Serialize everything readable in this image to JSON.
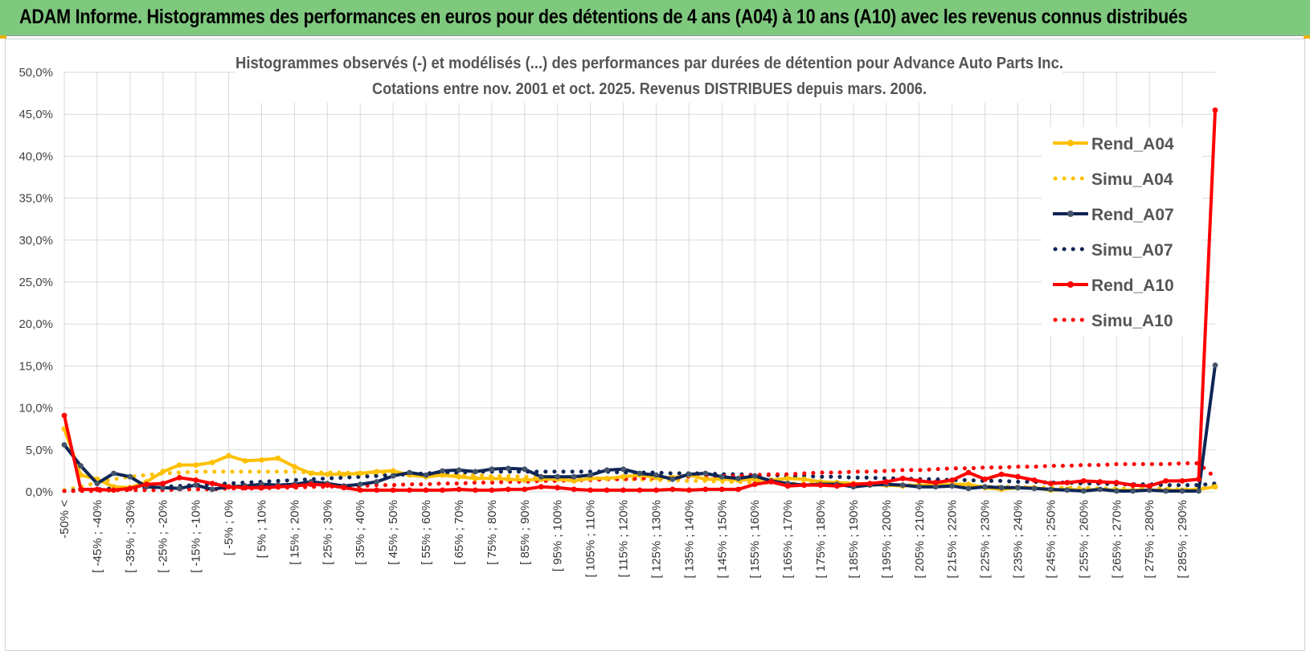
{
  "header": {
    "title": "ADAM Informe. Histogrammes des performances en euros pour des détentions de 4 ans (A04) à 10 ans (A10) avec les revenus connus distribués"
  },
  "chart_data": {
    "type": "line",
    "title": "Histogrammes observés (-) et modélisés (...) des performances par durées de détention pour Advance Auto Parts Inc.",
    "subtitle": "Cotations entre nov. 2001 et oct. 2025. Revenus DISTRIBUES depuis mars. 2006.",
    "xlabel": "",
    "ylabel": "",
    "ylim": [
      0,
      50
    ],
    "yticks": [
      "0,0%",
      "5,0%",
      "10,0%",
      "15,0%",
      "20,0%",
      "25,0%",
      "30,0%",
      "35,0%",
      "40,0%",
      "45,0%",
      "50,0%"
    ],
    "grid": true,
    "legend_position": "right",
    "tick_labels": [
      "-50% <",
      "[ -45% ; -40%",
      "[ -35% ; -30%",
      "[ -25% ; -20%",
      "[ -15% ; -10%",
      "[ -5% ; 0%",
      "[ 5% ; 10%",
      "[ 15% ; 20%",
      "[ 25% ; 30%",
      "[ 35% ; 40%",
      "[ 45% ; 50%",
      "[ 55% ; 60%",
      "[ 65% ; 70%",
      "[ 75% ; 80%",
      "[ 85% ; 90%",
      "[ 95% ; 100%",
      "[ 105% ; 110%",
      "[ 115% ; 120%",
      "[ 125% ; 130%",
      "[ 135% ; 140%",
      "[ 145% ; 150%",
      "[ 155% ; 160%",
      "[ 165% ; 170%",
      "[ 175% ; 180%",
      "[ 185% ; 190%",
      "[ 195% ; 200%",
      "[ 205% ; 210%",
      "[ 215% ; 220%",
      "[ 225% ; 230%",
      "[ 235% ; 240%",
      "[ 245% ; 250%",
      "[ 255% ; 260%",
      "[ 265% ; 270%",
      "[ 275% ; 280%",
      "[ 285% ; 290%"
    ],
    "series": [
      {
        "name": "Rend_A04",
        "color": "#fec000",
        "style": "solid",
        "values": [
          7.5,
          2.0,
          1.5,
          0.6,
          0.5,
          1.2,
          2.4,
          3.2,
          3.2,
          3.5,
          4.3,
          3.7,
          3.8,
          4.0,
          3.0,
          2.2,
          2.1,
          2.1,
          2.2,
          2.4,
          2.5,
          2.0,
          1.8,
          2.0,
          1.8,
          1.6,
          1.6,
          1.5,
          1.4,
          1.5,
          1.5,
          1.3,
          1.6,
          1.6,
          1.8,
          2.0,
          1.7,
          1.7,
          2.0,
          1.5,
          1.5,
          1.4,
          1.5,
          1.4,
          1.6,
          1.5,
          1.2,
          1.1,
          1.0,
          0.9,
          0.8,
          0.7,
          0.8,
          0.8,
          0.9,
          0.9,
          0.5,
          0.3,
          0.5,
          0.5,
          0.2,
          0.3,
          0.2,
          0.3,
          0.2,
          0.2,
          0.2,
          0.2,
          0.2,
          0.3,
          0.6
        ]
      },
      {
        "name": "Simu_A04",
        "color": "#fec000",
        "style": "dotted",
        "values": [
          0.2,
          0.6,
          1.1,
          1.5,
          1.8,
          2.0,
          2.2,
          2.3,
          2.4,
          2.4,
          2.4,
          2.4,
          2.4,
          2.4,
          2.4,
          2.3,
          2.3,
          2.3,
          2.2,
          2.2,
          2.2,
          2.1,
          2.1,
          2.0,
          2.0,
          2.0,
          1.9,
          1.9,
          1.8,
          1.8,
          1.7,
          1.7,
          1.6,
          1.6,
          1.5,
          1.5,
          1.4,
          1.4,
          1.3,
          1.3,
          1.2,
          1.2,
          1.1,
          1.1,
          1.0,
          1.0,
          1.0,
          0.9,
          0.9,
          0.9,
          0.8,
          0.8,
          0.8,
          0.7,
          0.7,
          0.7,
          0.6,
          0.6,
          0.6,
          0.5,
          0.5,
          0.5,
          0.5,
          0.4,
          0.4,
          0.4,
          0.4,
          0.4,
          0.3,
          0.3,
          0.7
        ]
      },
      {
        "name": "Rend_A07",
        "color": "#0f2555",
        "style": "solid",
        "values": [
          5.6,
          3.1,
          1.0,
          2.2,
          1.8,
          0.6,
          0.5,
          0.4,
          0.8,
          0.3,
          0.6,
          0.7,
          0.9,
          0.8,
          0.9,
          1.2,
          1.0,
          0.7,
          0.9,
          1.2,
          1.9,
          2.3,
          2.0,
          2.5,
          2.6,
          2.4,
          2.7,
          2.8,
          2.7,
          1.8,
          1.8,
          1.8,
          2.0,
          2.6,
          2.7,
          2.2,
          2.0,
          1.5,
          2.1,
          2.2,
          1.8,
          1.6,
          1.9,
          1.3,
          1.0,
          0.8,
          0.9,
          0.9,
          0.6,
          0.8,
          0.9,
          0.8,
          0.6,
          0.6,
          0.7,
          0.4,
          0.6,
          0.5,
          0.5,
          0.4,
          0.3,
          0.2,
          0.1,
          0.3,
          0.1,
          0.1,
          0.2,
          0.1,
          0.1,
          0.1,
          15.1
        ]
      },
      {
        "name": "Simu_A07",
        "color": "#0f2555",
        "style": "dotted",
        "values": [
          0.1,
          0.2,
          0.3,
          0.4,
          0.4,
          0.5,
          0.6,
          0.7,
          0.8,
          0.9,
          1.0,
          1.1,
          1.2,
          1.3,
          1.4,
          1.5,
          1.6,
          1.7,
          1.8,
          1.9,
          2.0,
          2.1,
          2.2,
          2.3,
          2.3,
          2.4,
          2.4,
          2.4,
          2.4,
          2.4,
          2.4,
          2.4,
          2.4,
          2.4,
          2.3,
          2.3,
          2.3,
          2.2,
          2.2,
          2.2,
          2.1,
          2.1,
          2.0,
          2.0,
          1.9,
          1.9,
          1.8,
          1.8,
          1.7,
          1.7,
          1.6,
          1.6,
          1.5,
          1.5,
          1.4,
          1.4,
          1.3,
          1.3,
          1.2,
          1.2,
          1.1,
          1.1,
          1.0,
          1.0,
          0.9,
          0.9,
          0.9,
          0.8,
          0.8,
          0.8,
          1.0
        ]
      },
      {
        "name": "Rend_A10",
        "color": "#ff0000",
        "style": "solid",
        "values": [
          9.1,
          0.3,
          0.3,
          0.2,
          0.4,
          0.9,
          1.0,
          1.7,
          1.4,
          1.0,
          0.6,
          0.5,
          0.5,
          0.6,
          0.7,
          0.9,
          0.8,
          0.5,
          0.2,
          0.2,
          0.2,
          0.2,
          0.2,
          0.2,
          0.3,
          0.2,
          0.2,
          0.3,
          0.3,
          0.6,
          0.5,
          0.3,
          0.2,
          0.2,
          0.2,
          0.2,
          0.2,
          0.3,
          0.2,
          0.3,
          0.3,
          0.3,
          0.9,
          1.2,
          0.7,
          0.8,
          0.8,
          0.7,
          0.9,
          1.0,
          1.2,
          1.6,
          1.3,
          1.1,
          1.4,
          2.3,
          1.5,
          2.1,
          1.8,
          1.4,
          1.0,
          1.1,
          1.3,
          1.2,
          1.1,
          0.8,
          0.7,
          1.3,
          1.3,
          1.5,
          45.5
        ]
      },
      {
        "name": "Simu_A10",
        "color": "#ff0000",
        "style": "dotted",
        "values": [
          0.1,
          0.1,
          0.1,
          0.2,
          0.2,
          0.2,
          0.2,
          0.3,
          0.3,
          0.3,
          0.4,
          0.4,
          0.4,
          0.5,
          0.5,
          0.6,
          0.6,
          0.7,
          0.7,
          0.8,
          0.8,
          0.9,
          0.9,
          1.0,
          1.0,
          1.1,
          1.1,
          1.2,
          1.2,
          1.3,
          1.3,
          1.4,
          1.4,
          1.5,
          1.5,
          1.6,
          1.7,
          1.7,
          1.8,
          1.8,
          1.9,
          1.9,
          2.0,
          2.1,
          2.1,
          2.2,
          2.3,
          2.3,
          2.4,
          2.4,
          2.5,
          2.6,
          2.6,
          2.7,
          2.8,
          2.8,
          2.9,
          2.9,
          3.0,
          3.0,
          3.1,
          3.1,
          3.2,
          3.2,
          3.3,
          3.3,
          3.3,
          3.3,
          3.4,
          3.4,
          1.7
        ]
      }
    ]
  }
}
